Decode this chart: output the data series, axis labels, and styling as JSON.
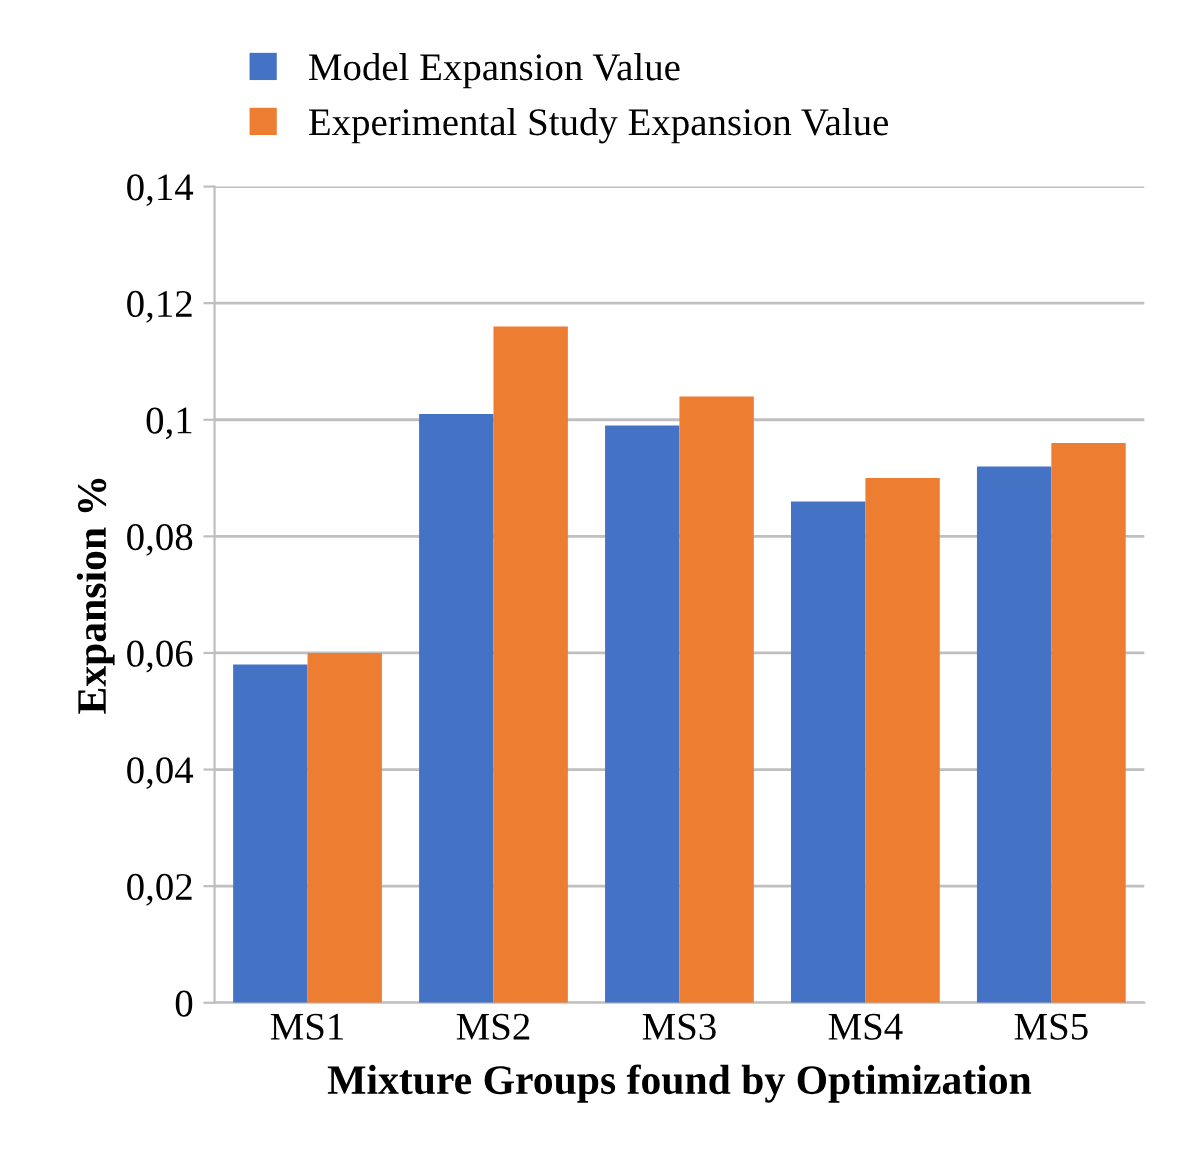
{
  "chart_data": {
    "type": "bar",
    "xlabel": "Mixture Groups found by Optimization",
    "ylabel": "Expansion %",
    "categories": [
      "MS1",
      "MS2",
      "MS3",
      "MS4",
      "MS5"
    ],
    "series": [
      {
        "name": "Model Expansion Value",
        "color": "#4472c4",
        "values": [
          0.058,
          0.101,
          0.099,
          0.086,
          0.092
        ]
      },
      {
        "name": "Experimental Study Expansion Value",
        "color": "#ed7d31",
        "values": [
          0.06,
          0.116,
          0.104,
          0.09,
          0.096
        ]
      }
    ],
    "ylim": [
      0,
      0.14
    ],
    "yticks": [
      {
        "value": 0,
        "label": "0"
      },
      {
        "value": 0.02,
        "label": "0,02"
      },
      {
        "value": 0.04,
        "label": "0,04"
      },
      {
        "value": 0.06,
        "label": "0,06"
      },
      {
        "value": 0.08,
        "label": "0,08"
      },
      {
        "value": 0.1,
        "label": "0,1"
      },
      {
        "value": 0.12,
        "label": "0,12"
      },
      {
        "value": 0.14,
        "label": "0,14"
      }
    ],
    "grid": "y",
    "legend": "top"
  }
}
